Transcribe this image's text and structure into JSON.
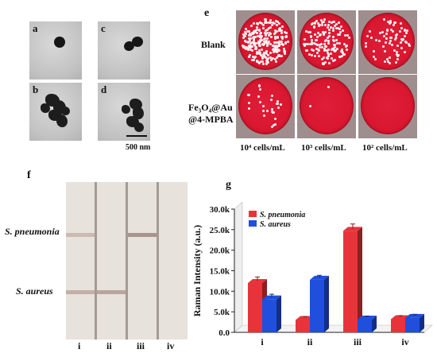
{
  "panels": {
    "a": "a",
    "b": "b",
    "c": "c",
    "d": "d",
    "e": "e",
    "f": "f",
    "g": "g"
  },
  "scale_bar": "500 nm",
  "plates": {
    "row_blank": "Blank",
    "row_probe_line1": "Fe₃O₄@Au",
    "row_probe_line2": "@4-MPBA",
    "columns": [
      "10⁴ cells/mL",
      "10³ cells/mL",
      "10² cells/mL"
    ]
  },
  "strip": {
    "row_labels": [
      "S. pneumonia",
      "S. aureus"
    ],
    "lanes": [
      "i",
      "ii",
      "iii",
      "iv"
    ]
  },
  "colors": {
    "s_pneumonia": "#e8333b",
    "s_aureus": "#1f4fdc",
    "plate_red": "#d9172f"
  },
  "chart_data": {
    "type": "bar",
    "categories": [
      "i",
      "ii",
      "iii",
      "iv"
    ],
    "series": [
      {
        "name": "S. pneumonia",
        "values": [
          12000,
          3000,
          24700,
          3200
        ]
      },
      {
        "name": "S. aureus",
        "values": [
          8000,
          12800,
          3100,
          3500
        ]
      }
    ],
    "errors": [
      [
        900,
        300,
        1100,
        300
      ],
      [
        700,
        500,
        300,
        300
      ]
    ],
    "ylabel": "Raman Intensity (a.u.)",
    "ylim": [
      0,
      30000
    ],
    "yticks": [
      "0.0",
      "5.0k",
      "10.0k",
      "15.0k",
      "20.0k",
      "25.0k",
      "30.0k"
    ],
    "legend": "top-left",
    "grid": false
  }
}
